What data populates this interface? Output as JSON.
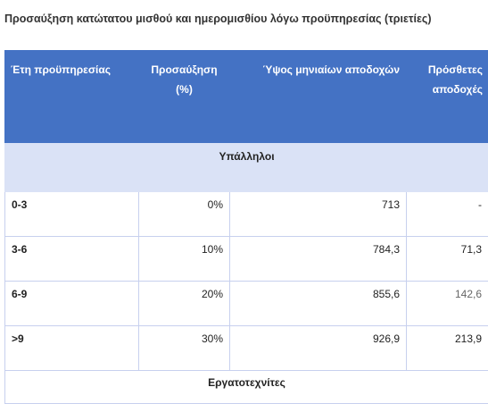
{
  "title": "Προσαύξηση κατώτατου μισθού και ημερομισθίου λόγω προϋπηρεσίας (τριετίες)",
  "table": {
    "headers": {
      "years": "Έτη προϋπηρεσίας",
      "increase_line1": "Προσαύξηση",
      "increase_line2": "(%)",
      "level": "Ύψος μηνιαίων αποδοχών",
      "extra_line1": "Πρόσθετες",
      "extra_line2": "αποδοχές"
    },
    "groups": [
      {
        "label": "Υπάλληλοι",
        "rows": [
          {
            "years": "0-3",
            "increase": "0%",
            "level": "713",
            "extra": "-"
          },
          {
            "years": "3-6",
            "increase": "10%",
            "level": "784,3",
            "extra": "71,3"
          },
          {
            "years": "6-9",
            "increase": "20%",
            "level": "855,6",
            "extra": "142,6"
          },
          {
            "years": ">9",
            "increase": "30%",
            "level": "926,9",
            "extra": "213,9"
          }
        ]
      },
      {
        "label": "Εργατοτεχνίτες",
        "rows": []
      }
    ]
  }
}
